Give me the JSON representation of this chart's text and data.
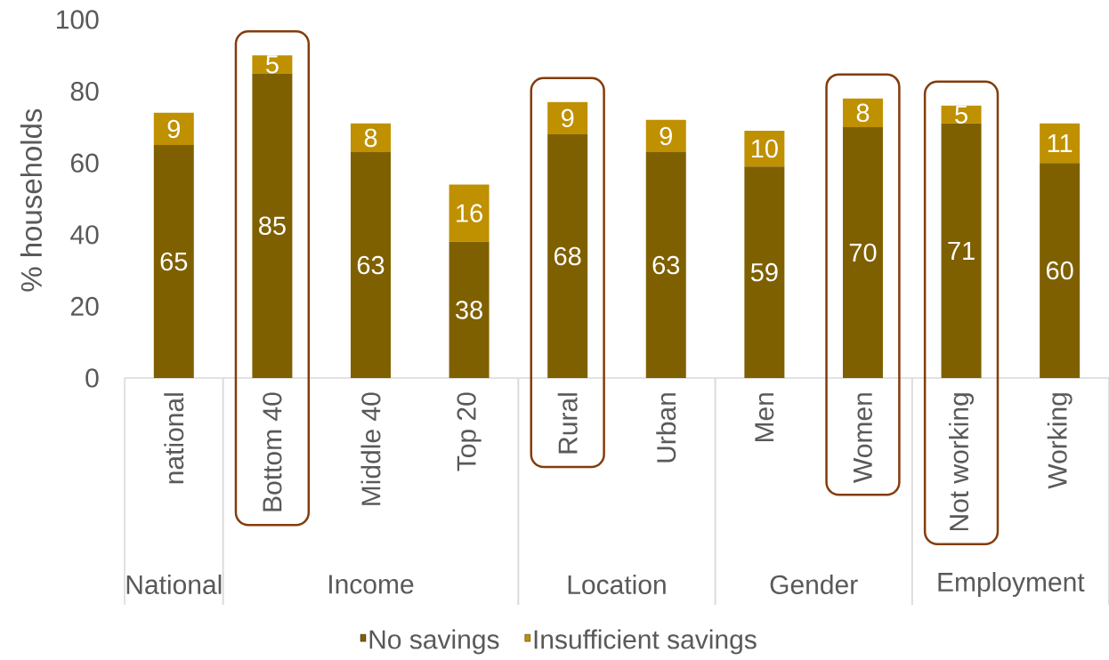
{
  "chart_data": {
    "type": "bar",
    "stacked": true,
    "ylabel": "% households",
    "categories": [
      "national",
      "Bottom 40",
      "Middle 40",
      "Top 20",
      "Rural",
      "Urban",
      "Men",
      "Women",
      "Not working",
      "Working"
    ],
    "series": [
      {
        "name": "No savings",
        "color": "#7f6000",
        "values": [
          65,
          85,
          63,
          38,
          68,
          63,
          59,
          70,
          71,
          60
        ]
      },
      {
        "name": "Insufficient savings",
        "color": "#bf9000",
        "values": [
          9,
          5,
          8,
          16,
          9,
          9,
          10,
          8,
          5,
          11
        ]
      }
    ],
    "ylim": [
      0,
      100
    ],
    "yticks": [
      0,
      20,
      40,
      60,
      80,
      100
    ],
    "data_labels": true,
    "legend": "bottom",
    "annotations": [
      "National",
      "Income",
      "Location",
      "Gender",
      "Employment"
    ]
  }
}
